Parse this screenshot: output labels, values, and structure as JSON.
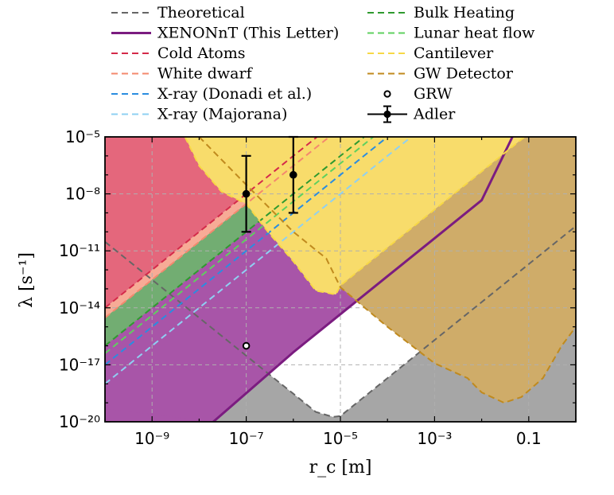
{
  "chart_data": {
    "type": "area",
    "title": "",
    "xlabel": "r_c [m]",
    "ylabel": "λ [s⁻¹]",
    "xscale": "log",
    "yscale": "log",
    "xlim": [
      1e-10,
      1
    ],
    "ylim": [
      1e-20,
      1e-05
    ],
    "xticks": [
      {
        "value": 1e-09,
        "label": "10⁻⁹"
      },
      {
        "value": 1e-07,
        "label": "10⁻⁷"
      },
      {
        "value": 1e-05,
        "label": "10⁻⁵"
      },
      {
        "value": 0.001,
        "label": "10⁻³"
      },
      {
        "value": 0.1,
        "label": "0.1"
      }
    ],
    "yticks": [
      {
        "value": 1e-20,
        "label": "10⁻²⁰"
      },
      {
        "value": 1e-17,
        "label": "10⁻¹⁷"
      },
      {
        "value": 1e-14,
        "label": "10⁻¹⁴"
      },
      {
        "value": 1e-11,
        "label": "10⁻¹¹"
      },
      {
        "value": 1e-08,
        "label": "10⁻⁸"
      },
      {
        "value": 1e-05,
        "label": "10⁻⁵"
      }
    ],
    "grid": true,
    "legend_position": "top (two columns above plot)",
    "series": [
      {
        "name": "Theoretical",
        "style": "dashed",
        "color": "#666666",
        "points": [
          [
            1e-10,
            3e-11
          ],
          [
            1e-09,
            3e-13
          ],
          [
            1e-08,
            3e-15
          ],
          [
            1e-07,
            3e-17
          ],
          [
            3e-07,
            3.3e-18
          ],
          [
            1e-06,
            3e-19
          ],
          [
            3e-06,
            3.3e-20
          ],
          [
            7e-06,
            1.8e-20
          ],
          [
            1e-05,
            2e-20
          ],
          [
            0.0001,
            2e-18
          ],
          [
            0.001,
            2e-16
          ],
          [
            0.01,
            2e-14
          ],
          [
            0.1,
            2e-12
          ],
          [
            1,
            2e-10
          ]
        ]
      },
      {
        "name": "XENONnT (This Letter)",
        "style": "solid",
        "color": "#7b1c80",
        "points": [
          [
            2e-08,
            1e-20
          ],
          [
            1e-06,
            4.6e-17
          ],
          [
            1e-05,
            4.6e-15
          ],
          [
            0.0001,
            4.6e-13
          ],
          [
            0.001,
            4.6e-11
          ],
          [
            0.01,
            4.6e-09
          ],
          [
            0.045,
            1e-05
          ]
        ]
      },
      {
        "name": "Cold Atoms",
        "style": "dashed",
        "color": "#d42a4a",
        "points": [
          [
            1e-10,
            1e-14
          ],
          [
            1e-09,
            1e-12
          ],
          [
            1e-08,
            1e-10
          ],
          [
            1e-07,
            1e-08
          ],
          [
            1e-06,
            1e-06
          ],
          [
            3.2e-06,
            1e-05
          ]
        ]
      },
      {
        "name": "White dwarf",
        "style": "dashed",
        "color": "#f4886e",
        "points": [
          [
            1e-10,
            3e-15
          ],
          [
            1e-09,
            3e-13
          ],
          [
            1e-08,
            3e-11
          ],
          [
            1e-07,
            3e-09
          ],
          [
            1e-06,
            3e-07
          ],
          [
            5.8e-06,
            1e-05
          ]
        ]
      },
      {
        "name": "X-ray (Donadi et al.)",
        "style": "dashed",
        "color": "#2a8de0",
        "points": [
          [
            1e-10,
            1e-17
          ],
          [
            1e-09,
            1e-15
          ],
          [
            1e-08,
            1e-13
          ],
          [
            1e-07,
            1e-11
          ],
          [
            1e-06,
            1e-09
          ],
          [
            1e-05,
            1e-07
          ],
          [
            0.0001,
            1e-05
          ]
        ]
      },
      {
        "name": "X-ray (Majorana)",
        "style": "dashed",
        "color": "#8fd0f2",
        "points": [
          [
            1e-10,
            1e-18
          ],
          [
            1e-09,
            1e-16
          ],
          [
            1e-08,
            1e-14
          ],
          [
            1e-07,
            1e-12
          ],
          [
            1e-06,
            1e-10
          ],
          [
            1e-05,
            1e-08
          ],
          [
            0.0001,
            1e-06
          ],
          [
            0.00032,
            1e-05
          ]
        ]
      },
      {
        "name": "Bulk Heating",
        "style": "dashed",
        "color": "#2f9a2f",
        "points": [
          [
            1e-10,
            1e-16
          ],
          [
            1e-09,
            1e-14
          ],
          [
            1e-08,
            1e-12
          ],
          [
            1e-07,
            1e-10
          ],
          [
            1e-06,
            1e-08
          ],
          [
            1e-05,
            1e-06
          ],
          [
            3.2e-05,
            1e-05
          ]
        ]
      },
      {
        "name": "Lunar heat flow",
        "style": "dashed",
        "color": "#5fd05f",
        "points": [
          [
            1e-10,
            4e-17
          ],
          [
            1e-09,
            4e-15
          ],
          [
            1e-08,
            4e-13
          ],
          [
            1e-07,
            4e-11
          ],
          [
            1e-06,
            4e-09
          ],
          [
            1e-05,
            4e-07
          ],
          [
            5e-05,
            1e-05
          ]
        ]
      },
      {
        "name": "Cantilever",
        "style": "dashed",
        "color": "#f7d846",
        "points": [
          [
            5e-09,
            1e-05
          ],
          [
            1e-08,
            3e-07
          ],
          [
            3e-08,
            1.3e-08
          ],
          [
            1e-07,
            3e-09
          ],
          [
            3e-07,
            9e-11
          ],
          [
            1e-06,
            2.8e-12
          ],
          [
            3e-06,
            8e-14
          ],
          [
            8e-06,
            5e-14
          ],
          [
            1e-05,
            1.5e-13
          ],
          [
            0.0001,
            1.5e-11
          ],
          [
            0.001,
            1.5e-09
          ],
          [
            0.01,
            1.5e-07
          ],
          [
            0.1,
            1.5e-05
          ],
          [
            0.13,
            1e-05
          ]
        ]
      },
      {
        "name": "GW Detector",
        "style": "dashed",
        "color": "#c08a1e",
        "points": [
          [
            1e-08,
            1e-05
          ],
          [
            1e-07,
            3e-08
          ],
          [
            1e-06,
            1e-10
          ],
          [
            5e-06,
            4e-12
          ],
          [
            1e-05,
            1.2e-13
          ],
          [
            0.0001,
            1e-15
          ],
          [
            0.001,
            1.2e-17
          ],
          [
            0.005,
            2e-18
          ],
          [
            0.01,
            3.5e-19
          ],
          [
            0.03,
            1e-19
          ],
          [
            0.07,
            2e-19
          ],
          [
            0.2,
            2e-18
          ],
          [
            0.5,
            1e-16
          ],
          [
            1,
            1e-15
          ]
        ]
      }
    ],
    "regions": [
      {
        "name": "Cold Atoms excluded",
        "color": "#e4677c"
      },
      {
        "name": "White dwarf excluded",
        "color": "#f7ab96"
      },
      {
        "name": "Bulk Heating excluded",
        "color": "#72ad72"
      },
      {
        "name": "X-ray (Donadi et al.) excluded",
        "color": "#6db3ee"
      },
      {
        "name": "X-ray (Majorana) excluded",
        "color": "#b5dff2"
      },
      {
        "name": "XENONnT excluded",
        "color": "#a855a8"
      },
      {
        "name": "Cantilever excluded",
        "color": "#f8dc6b"
      },
      {
        "name": "GW Detector excluded",
        "color": "#cfac69"
      },
      {
        "name": "Theoretical excluded",
        "color": "#a6a6a6"
      }
    ],
    "points": [
      {
        "name": "GRW",
        "x": 1e-07,
        "y": 1e-16,
        "marker": "open-circle"
      },
      {
        "name": "Adler",
        "x": 1e-07,
        "y": 1e-08,
        "marker": "filled-circle",
        "yerr_low": 1e-10,
        "yerr_high": 1e-06
      },
      {
        "name": "Adler",
        "x": 1e-06,
        "y": 1e-07,
        "marker": "filled-circle",
        "yerr_low": 1e-09,
        "yerr_high": 1e-05
      }
    ]
  }
}
